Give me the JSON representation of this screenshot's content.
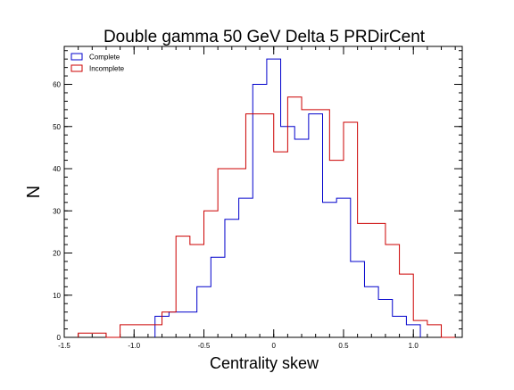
{
  "chart_data": {
    "type": "histogram",
    "title": "Double gamma 50 GeV Delta 5 PRDirCent",
    "xlabel": "Centrality skew",
    "ylabel": "N",
    "xlim": [
      -1.5,
      1.35
    ],
    "ylim": [
      0,
      69
    ],
    "bin_width": 0.1,
    "x_ticks": [
      -1.5,
      -1.0,
      -0.5,
      0,
      0.5,
      1.0
    ],
    "x_tick_labels": [
      "-1.5",
      "-1.0",
      "-0.5",
      "0",
      "0.5",
      "1.0"
    ],
    "y_ticks": [
      0,
      10,
      20,
      30,
      40,
      50,
      60
    ],
    "y_tick_labels": [
      "0",
      "10",
      "20",
      "30",
      "40",
      "50",
      "60"
    ],
    "legend_position": "top-left",
    "series": [
      {
        "name": "Complete",
        "color": "#0000cc",
        "bin_edges": [
          -0.85,
          -0.75,
          -0.65,
          -0.55,
          -0.45,
          -0.35,
          -0.25,
          -0.15,
          -0.05,
          0.05,
          0.15,
          0.25,
          0.35,
          0.45,
          0.55,
          0.65,
          0.75,
          0.85,
          0.95,
          1.05
        ],
        "counts": [
          5,
          6,
          6,
          12,
          19,
          28,
          33,
          60,
          66,
          50,
          47,
          53,
          32,
          33,
          18,
          12,
          9,
          5,
          3
        ]
      },
      {
        "name": "Incomplete",
        "color": "#cc0000",
        "bin_edges": [
          -1.4,
          -1.3,
          -1.2,
          -1.1,
          -1.0,
          -0.9,
          -0.8,
          -0.7,
          -0.6,
          -0.5,
          -0.4,
          -0.3,
          -0.2,
          -0.1,
          0.0,
          0.1,
          0.2,
          0.3,
          0.4,
          0.5,
          0.6,
          0.7,
          0.8,
          0.9,
          1.0,
          1.1,
          1.2,
          1.3
        ],
        "counts": [
          1,
          1,
          0,
          3,
          3,
          3,
          6,
          24,
          22,
          30,
          40,
          40,
          53,
          53,
          44,
          57,
          54,
          54,
          42,
          51,
          27,
          27,
          22,
          15,
          4,
          3,
          0
        ]
      }
    ]
  }
}
